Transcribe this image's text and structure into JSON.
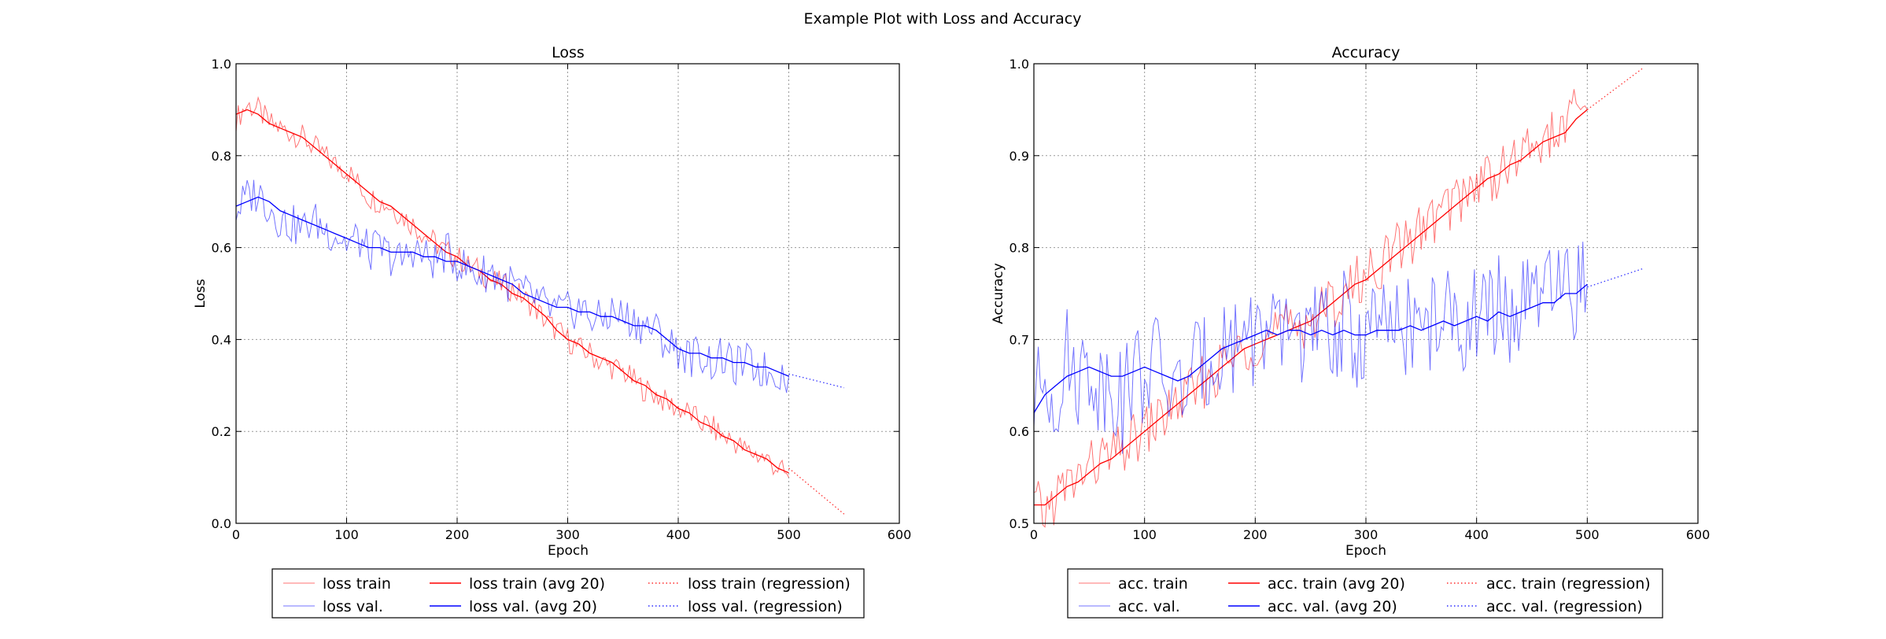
{
  "figure": {
    "suptitle": "Example Plot with Loss and Accuracy"
  },
  "colors": {
    "train": "#ff0000",
    "val": "#0000ff",
    "frame": "#000000",
    "grid": "#9a9a9a"
  },
  "chart_data": [
    {
      "type": "line",
      "title": "Loss",
      "xlabel": "Epoch",
      "ylabel": "Loss",
      "xlim": [
        0,
        600
      ],
      "ylim": [
        0.0,
        1.0
      ],
      "xticks": [
        0,
        100,
        200,
        300,
        400,
        500,
        600
      ],
      "xtick_labels": [
        "0",
        "100",
        "200",
        "300",
        "400",
        "500",
        "600"
      ],
      "yticks": [
        0.0,
        0.2,
        0.4,
        0.6,
        0.8,
        1.0
      ],
      "ytick_labels": [
        "0.0",
        "0.2",
        "0.4",
        "0.6",
        "0.8",
        "1.0"
      ],
      "grid": true,
      "legend_position": "below",
      "legend": [
        "loss train",
        "loss train (avg 20)",
        "loss train (regression)",
        "loss val.",
        "loss val. (avg 20)",
        "loss val. (regression)"
      ],
      "x": [
        0,
        10,
        20,
        30,
        40,
        50,
        60,
        70,
        80,
        90,
        100,
        110,
        120,
        130,
        140,
        150,
        160,
        170,
        180,
        190,
        200,
        210,
        220,
        230,
        240,
        250,
        260,
        270,
        280,
        290,
        300,
        310,
        320,
        330,
        340,
        350,
        360,
        370,
        380,
        390,
        400,
        410,
        420,
        430,
        440,
        450,
        460,
        470,
        480,
        490,
        500
      ],
      "series": [
        {
          "name": "loss train",
          "style": "raw",
          "color": "train",
          "values": [
            0.88,
            0.91,
            0.9,
            0.87,
            0.86,
            0.85,
            0.84,
            0.82,
            0.8,
            0.78,
            0.77,
            0.74,
            0.71,
            0.7,
            0.69,
            0.67,
            0.65,
            0.63,
            0.61,
            0.59,
            0.58,
            0.56,
            0.55,
            0.53,
            0.52,
            0.51,
            0.49,
            0.47,
            0.44,
            0.42,
            0.4,
            0.38,
            0.37,
            0.35,
            0.34,
            0.33,
            0.31,
            0.29,
            0.28,
            0.26,
            0.25,
            0.24,
            0.22,
            0.21,
            0.19,
            0.18,
            0.16,
            0.15,
            0.14,
            0.12,
            0.1
          ]
        },
        {
          "name": "loss train (avg 20)",
          "style": "avg",
          "color": "train",
          "values": [
            0.89,
            0.9,
            0.89,
            0.87,
            0.86,
            0.85,
            0.84,
            0.82,
            0.8,
            0.78,
            0.76,
            0.74,
            0.72,
            0.7,
            0.69,
            0.67,
            0.65,
            0.63,
            0.61,
            0.59,
            0.58,
            0.56,
            0.55,
            0.53,
            0.52,
            0.5,
            0.49,
            0.47,
            0.45,
            0.42,
            0.4,
            0.39,
            0.37,
            0.36,
            0.35,
            0.33,
            0.31,
            0.3,
            0.28,
            0.27,
            0.25,
            0.24,
            0.22,
            0.21,
            0.19,
            0.18,
            0.16,
            0.15,
            0.14,
            0.12,
            0.11
          ]
        },
        {
          "name": "loss train (regression)",
          "style": "regression",
          "color": "train",
          "x": [
            500,
            550
          ],
          "values": [
            0.12,
            0.02
          ]
        },
        {
          "name": "loss val.",
          "style": "raw",
          "color": "val",
          "values": [
            0.68,
            0.71,
            0.72,
            0.69,
            0.66,
            0.65,
            0.64,
            0.66,
            0.64,
            0.63,
            0.61,
            0.62,
            0.59,
            0.6,
            0.58,
            0.57,
            0.6,
            0.58,
            0.57,
            0.59,
            0.57,
            0.55,
            0.54,
            0.55,
            0.53,
            0.52,
            0.5,
            0.49,
            0.47,
            0.46,
            0.46,
            0.47,
            0.45,
            0.44,
            0.46,
            0.45,
            0.44,
            0.43,
            0.42,
            0.39,
            0.38,
            0.36,
            0.37,
            0.35,
            0.36,
            0.34,
            0.35,
            0.34,
            0.33,
            0.33,
            0.32
          ]
        },
        {
          "name": "loss val. (avg 20)",
          "style": "avg",
          "color": "val",
          "values": [
            0.69,
            0.7,
            0.71,
            0.7,
            0.68,
            0.67,
            0.66,
            0.65,
            0.64,
            0.63,
            0.62,
            0.61,
            0.6,
            0.6,
            0.59,
            0.59,
            0.59,
            0.58,
            0.58,
            0.57,
            0.57,
            0.56,
            0.55,
            0.54,
            0.53,
            0.52,
            0.5,
            0.49,
            0.48,
            0.47,
            0.47,
            0.46,
            0.46,
            0.45,
            0.45,
            0.44,
            0.43,
            0.43,
            0.42,
            0.4,
            0.38,
            0.37,
            0.37,
            0.36,
            0.36,
            0.35,
            0.35,
            0.34,
            0.34,
            0.33,
            0.32
          ]
        },
        {
          "name": "loss val. (regression)",
          "style": "regression",
          "color": "val",
          "x": [
            500,
            550
          ],
          "values": [
            0.325,
            0.295
          ]
        }
      ]
    },
    {
      "type": "line",
      "title": "Accuracy",
      "xlabel": "Epoch",
      "ylabel": "Accuracy",
      "xlim": [
        0,
        600
      ],
      "ylim": [
        0.5,
        1.0
      ],
      "xticks": [
        0,
        100,
        200,
        300,
        400,
        500,
        600
      ],
      "xtick_labels": [
        "0",
        "100",
        "200",
        "300",
        "400",
        "500",
        "600"
      ],
      "yticks": [
        0.5,
        0.6,
        0.7,
        0.8,
        0.9,
        1.0
      ],
      "ytick_labels": [
        "0.5",
        "0.6",
        "0.7",
        "0.8",
        "0.9",
        "1.0"
      ],
      "grid": true,
      "legend_position": "below",
      "legend": [
        "acc. train",
        "acc. train (avg 20)",
        "acc. train (regression)",
        "acc. val.",
        "acc. val. (avg 20)",
        "acc. val. (regression)"
      ],
      "x": [
        0,
        10,
        20,
        30,
        40,
        50,
        60,
        70,
        80,
        90,
        100,
        110,
        120,
        130,
        140,
        150,
        160,
        170,
        180,
        190,
        200,
        210,
        220,
        230,
        240,
        250,
        260,
        270,
        280,
        290,
        300,
        310,
        320,
        330,
        340,
        350,
        360,
        370,
        380,
        390,
        400,
        410,
        420,
        430,
        440,
        450,
        460,
        470,
        480,
        490,
        500
      ],
      "series": [
        {
          "name": "acc. train",
          "style": "raw",
          "color": "train",
          "values": [
            0.52,
            0.51,
            0.53,
            0.54,
            0.55,
            0.56,
            0.57,
            0.57,
            0.58,
            0.59,
            0.6,
            0.61,
            0.62,
            0.63,
            0.64,
            0.65,
            0.66,
            0.67,
            0.68,
            0.69,
            0.7,
            0.7,
            0.71,
            0.71,
            0.72,
            0.72,
            0.73,
            0.74,
            0.75,
            0.76,
            0.77,
            0.78,
            0.79,
            0.8,
            0.81,
            0.82,
            0.83,
            0.84,
            0.85,
            0.86,
            0.87,
            0.88,
            0.88,
            0.89,
            0.9,
            0.91,
            0.92,
            0.92,
            0.93,
            0.95,
            0.95
          ]
        },
        {
          "name": "acc. train (avg 20)",
          "style": "avg",
          "color": "train",
          "values": [
            0.52,
            0.52,
            0.53,
            0.54,
            0.545,
            0.555,
            0.565,
            0.57,
            0.58,
            0.59,
            0.6,
            0.61,
            0.62,
            0.63,
            0.64,
            0.65,
            0.66,
            0.67,
            0.68,
            0.69,
            0.695,
            0.7,
            0.705,
            0.71,
            0.715,
            0.72,
            0.73,
            0.74,
            0.75,
            0.76,
            0.765,
            0.775,
            0.785,
            0.795,
            0.805,
            0.815,
            0.825,
            0.835,
            0.845,
            0.855,
            0.865,
            0.875,
            0.88,
            0.89,
            0.895,
            0.905,
            0.915,
            0.92,
            0.925,
            0.94,
            0.95
          ]
        },
        {
          "name": "acc. train (regression)",
          "style": "regression",
          "color": "train",
          "x": [
            500,
            550
          ],
          "values": [
            0.95,
            0.995
          ]
        },
        {
          "name": "acc. val.",
          "style": "raw",
          "color": "val",
          "values": [
            0.63,
            0.66,
            0.64,
            0.68,
            0.66,
            0.67,
            0.65,
            0.66,
            0.63,
            0.67,
            0.66,
            0.68,
            0.65,
            0.64,
            0.66,
            0.67,
            0.68,
            0.7,
            0.69,
            0.72,
            0.7,
            0.71,
            0.69,
            0.72,
            0.71,
            0.7,
            0.71,
            0.7,
            0.72,
            0.69,
            0.71,
            0.72,
            0.7,
            0.71,
            0.72,
            0.7,
            0.72,
            0.73,
            0.71,
            0.72,
            0.73,
            0.72,
            0.74,
            0.72,
            0.73,
            0.74,
            0.75,
            0.74,
            0.76,
            0.75,
            0.76
          ]
        },
        {
          "name": "acc. val. (avg 20)",
          "style": "avg",
          "color": "val",
          "values": [
            0.62,
            0.64,
            0.65,
            0.66,
            0.665,
            0.67,
            0.665,
            0.66,
            0.66,
            0.665,
            0.67,
            0.665,
            0.66,
            0.655,
            0.66,
            0.67,
            0.68,
            0.69,
            0.695,
            0.7,
            0.705,
            0.71,
            0.705,
            0.71,
            0.71,
            0.705,
            0.71,
            0.705,
            0.71,
            0.705,
            0.705,
            0.71,
            0.71,
            0.71,
            0.715,
            0.71,
            0.715,
            0.72,
            0.715,
            0.72,
            0.725,
            0.72,
            0.73,
            0.725,
            0.73,
            0.735,
            0.74,
            0.74,
            0.75,
            0.75,
            0.76
          ]
        },
        {
          "name": "acc. val. (regression)",
          "style": "regression",
          "color": "val",
          "x": [
            500,
            550
          ],
          "values": [
            0.757,
            0.777
          ]
        }
      ]
    }
  ]
}
